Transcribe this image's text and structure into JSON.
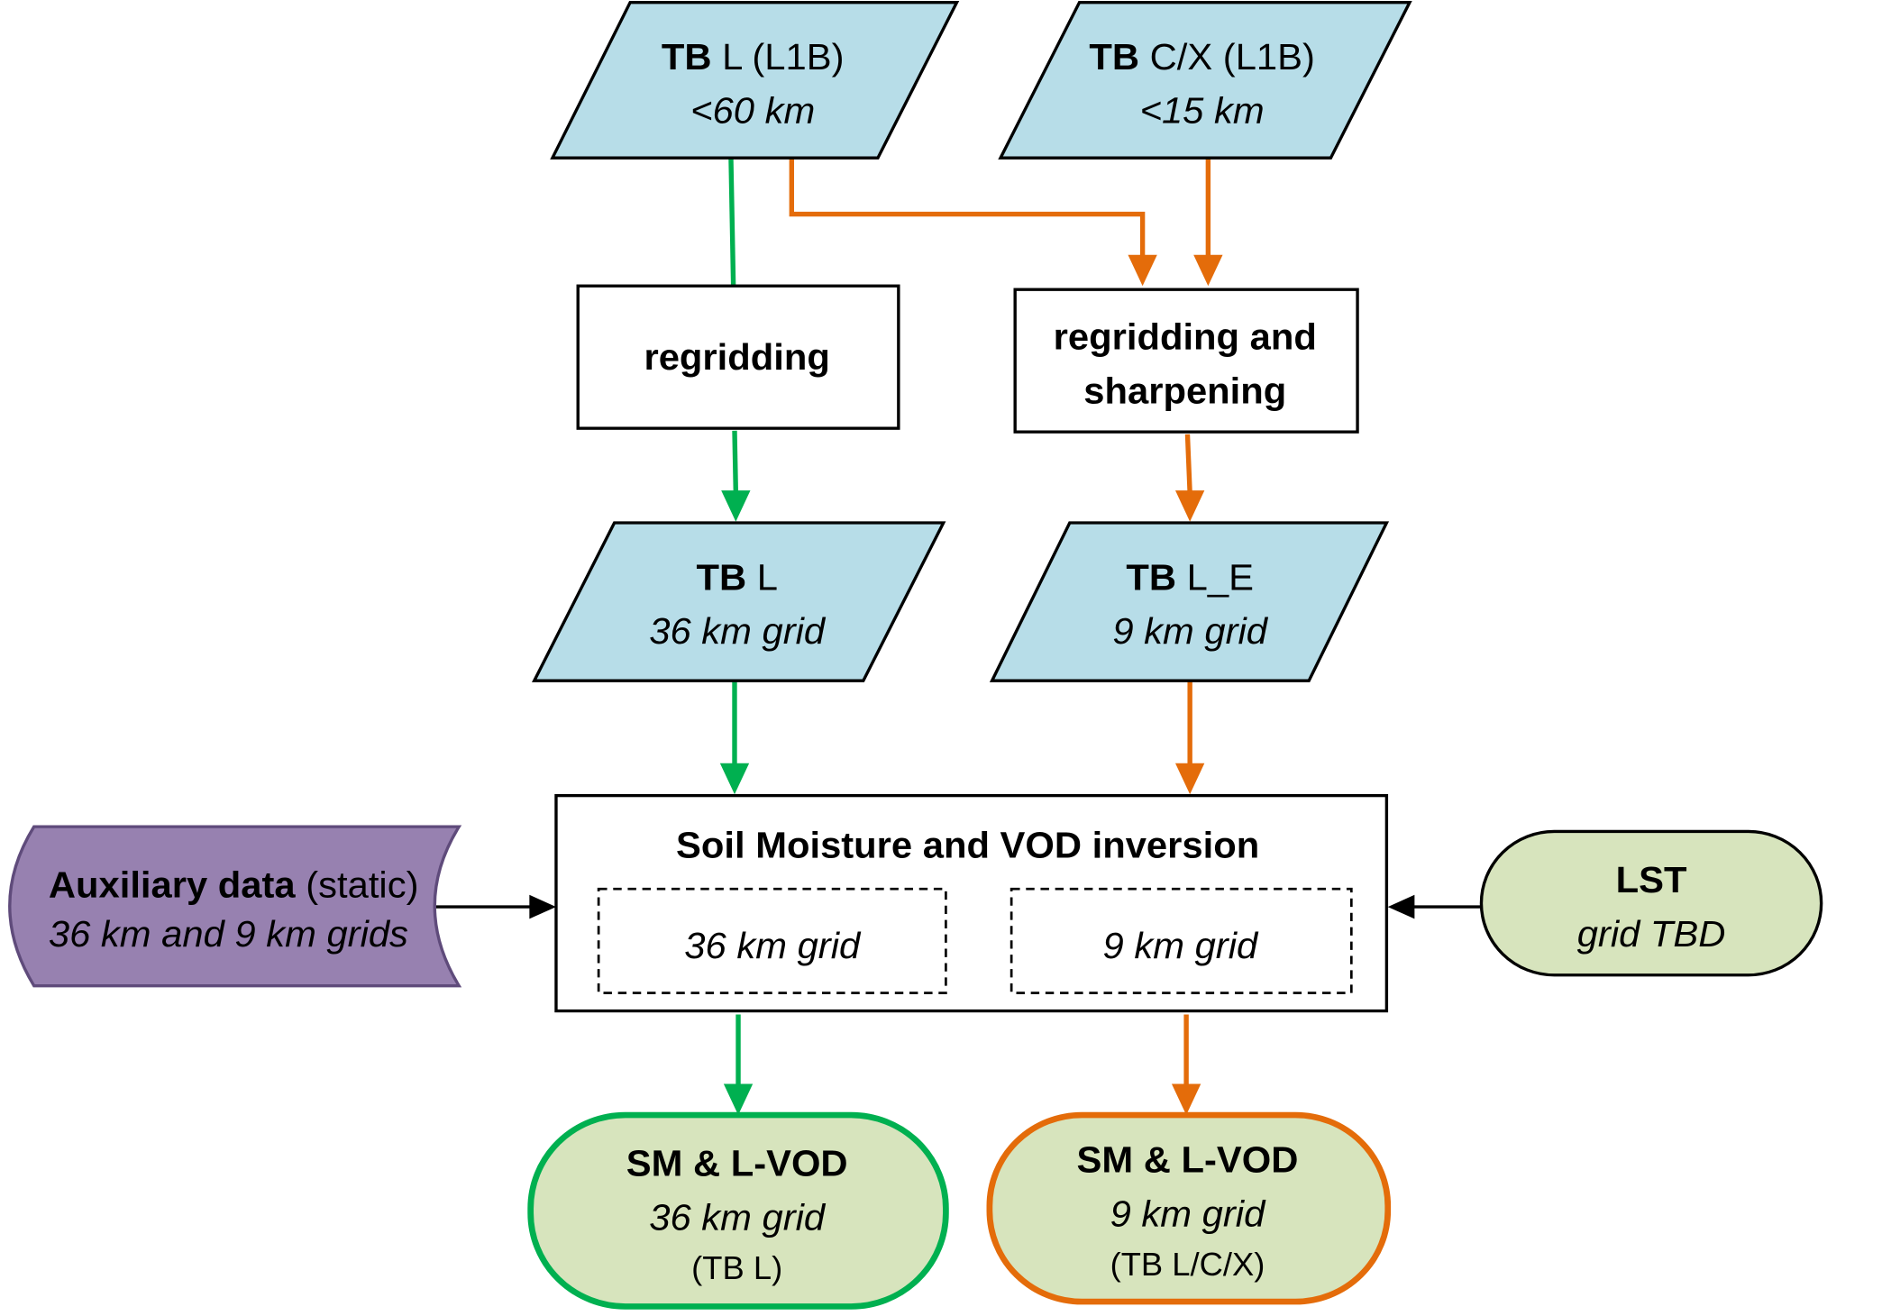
{
  "colors": {
    "data_fill": "#b7dde8",
    "product_fill": "#d7e4bd",
    "auxiliary_fill": "#9781b0",
    "auxiliary_stroke": "#5f4b7b",
    "l_band_path": "#00b050",
    "cx_band_path": "#e46c0a",
    "input_arrow": "#000000"
  },
  "nodes": {
    "tb_l_l1b": {
      "bold": "TB",
      "rest": " L (L1B)",
      "sub": "<60 km"
    },
    "tb_cx_l1b": {
      "bold": "TB",
      "rest": " C/X (L1B)",
      "sub": "<15 km"
    },
    "regridding": {
      "label": "regridding"
    },
    "regridding_sharpening": {
      "line1": "regridding and",
      "line2": "sharpening"
    },
    "tb_l": {
      "bold": "TB",
      "rest": " L",
      "sub": "36 km grid"
    },
    "tb_l_e": {
      "bold": "TB",
      "rest": " L_E",
      "sub": "9 km grid"
    },
    "inversion": {
      "title": "Soil Moisture and VOD inversion",
      "grid_36": "36 km grid",
      "grid_9": "9 km grid"
    },
    "auxiliary": {
      "bold": "Auxiliary data",
      "rest": " (static)",
      "sub": "36 km and 9 km grids"
    },
    "lst": {
      "title": "LST",
      "sub": "grid TBD"
    },
    "sm_36": {
      "title": "SM & L-VOD",
      "sub": "36 km grid",
      "note": "(TB L)"
    },
    "sm_9": {
      "title": "SM & L-VOD",
      "sub": "9 km grid",
      "note": "(TB L/C/X)"
    }
  }
}
